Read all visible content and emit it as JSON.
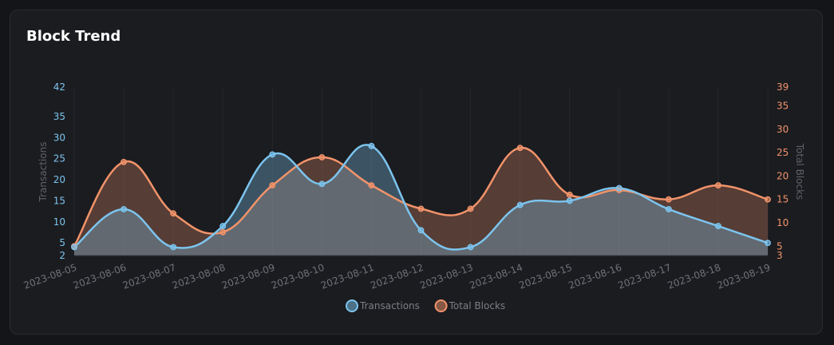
{
  "card": {
    "title": "Block Trend"
  },
  "chart_data": {
    "type": "line",
    "title": "Block Trend",
    "x": [
      "2023-08-05",
      "2023-08-06",
      "2023-08-07",
      "2023-08-08",
      "2023-08-09",
      "2023-08-10",
      "2023-08-11",
      "2023-08-12",
      "2023-08-13",
      "2023-08-14",
      "2023-08-15",
      "2023-08-16",
      "2023-08-17",
      "2023-08-18",
      "2023-08-19"
    ],
    "y_left": {
      "label": "Transactions",
      "ticks": [
        2,
        5,
        10,
        15,
        20,
        25,
        30,
        35,
        42
      ],
      "ylim": [
        2,
        42
      ]
    },
    "y_right": {
      "label": "Total Blocks",
      "ticks": [
        3,
        5,
        10,
        15,
        20,
        25,
        30,
        35,
        39
      ],
      "ylim": [
        3,
        39
      ]
    },
    "series": [
      {
        "name": "Transactions",
        "axis": "left",
        "color": "#7cc4ee",
        "fill": "rgba(124,196,238,0.33)",
        "values": [
          4,
          13,
          4,
          9,
          26,
          19,
          28,
          8,
          4,
          14,
          15,
          18,
          13,
          9,
          5
        ]
      },
      {
        "name": "Total Blocks",
        "axis": "right",
        "color": "#f1936a",
        "fill": "rgba(241,147,106,0.28)",
        "values": [
          5,
          23,
          12,
          8,
          18,
          24,
          18,
          13,
          13,
          26,
          16,
          17,
          15,
          18,
          15
        ]
      }
    ],
    "area": true,
    "smooth": true,
    "grid": {
      "vertical": true,
      "horizontal": false
    },
    "legend": {
      "position": "bottom-center"
    }
  }
}
